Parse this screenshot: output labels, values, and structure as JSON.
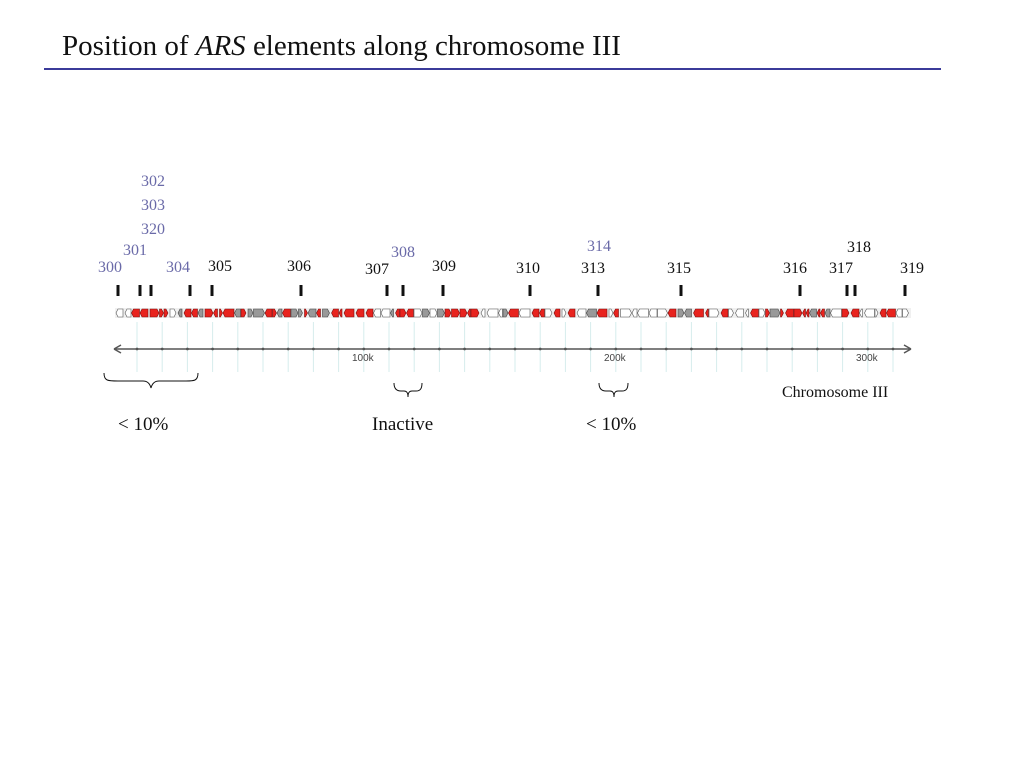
{
  "title": {
    "prefix": "Position of ",
    "italic": "ARS",
    "suffix": " elements along chromosome III"
  },
  "colors": {
    "rule": "#3b3b9a",
    "active_label": "#111111",
    "weak_label": "#6a6aa8",
    "gene": "#e8231e"
  },
  "ars_labels": {
    "a300": "300",
    "a301": "301",
    "a302": "302",
    "a303": "303",
    "a320": "320",
    "a304": "304",
    "a305": "305",
    "a306": "306",
    "a307": "307",
    "a308": "308",
    "a309": "309",
    "a310": "310",
    "a313": "313",
    "a314": "314",
    "a315": "315",
    "a316": "316",
    "a317": "317",
    "a318": "318",
    "a319": "319"
  },
  "axis": {
    "tick_100k": "100k",
    "tick_200k": "200k",
    "tick_300k": "300k"
  },
  "chromosome_label": "Chromosome III",
  "annotations": {
    "left": "< 10%",
    "middle": "Inactive",
    "right": "< 10%"
  }
}
